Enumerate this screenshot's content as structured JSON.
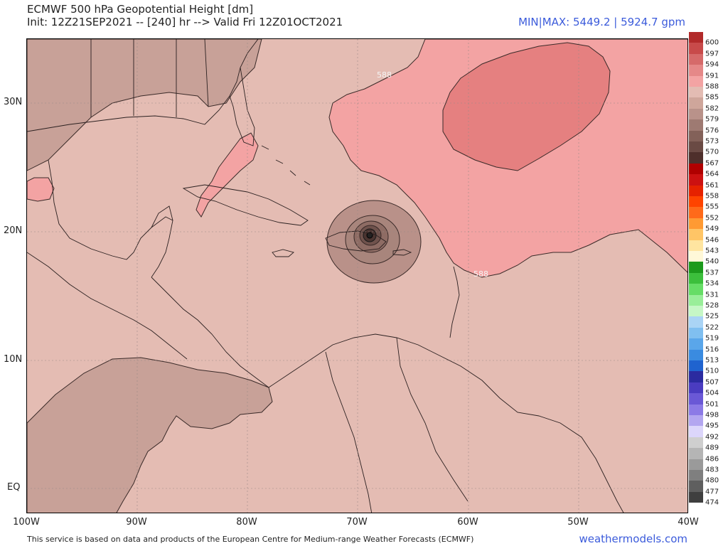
{
  "header": {
    "title": "ECMWF 500 hPa Geopotential Height [dm]",
    "init_line": "Init: 12Z21SEP2021 -- [240] hr --> Valid Fri 12Z01OCT2021",
    "minmax": "MIN|MAX: 5449.2 | 5924.7 gpm"
  },
  "axes": {
    "y_labels": [
      "30N",
      "20N",
      "10N",
      "EQ"
    ],
    "x_labels": [
      "100W",
      "90W",
      "80W",
      "70W",
      "60W",
      "50W",
      "40W"
    ]
  },
  "contour_labels": [
    "588",
    "588"
  ],
  "colorbar": {
    "labels": [
      "600",
      "597",
      "594",
      "591",
      "588",
      "585",
      "582",
      "579",
      "576",
      "573",
      "570",
      "567",
      "564",
      "561",
      "558",
      "555",
      "552",
      "549",
      "546",
      "543",
      "540",
      "537",
      "534",
      "531",
      "528",
      "525",
      "522",
      "519",
      "516",
      "513",
      "510",
      "507",
      "504",
      "501",
      "498",
      "495",
      "492",
      "489",
      "486",
      "483",
      "480",
      "477",
      "474"
    ],
    "colors": [
      "#b22a2a",
      "#c84a4a",
      "#d66a6a",
      "#e58888",
      "#f3a3a3",
      "#e3bcb3",
      "#cfa69b",
      "#b9928a",
      "#9e7a72",
      "#836159",
      "#6a4a44",
      "#4e2f2b",
      "#b00000",
      "#cc1111",
      "#e62200",
      "#ff4400",
      "#ff6a1a",
      "#ff9a33",
      "#ffc566",
      "#ffe5a0",
      "#fff8d8",
      "#1c9a1c",
      "#3cbf3c",
      "#66dd66",
      "#99ee99",
      "#c6f7c6",
      "#aad4f5",
      "#80bff0",
      "#5aa6ea",
      "#3a8be0",
      "#1f63cf",
      "#2b2ba0",
      "#4a3cc0",
      "#6a58d6",
      "#8c7ae6",
      "#b3a6f0",
      "#dcd6fb",
      "#cfcfcf",
      "#b5b5b5",
      "#9a9a9a",
      "#7f7f7f",
      "#5f5f5f",
      "#3f3f3f"
    ]
  },
  "footer": {
    "notice": "This service is based on data and products of the European Centre for Medium-range Weather Forecasts (ECMWF)",
    "brand": "weathermodels.com"
  },
  "colors": {
    "field_base": "#e4bcb3",
    "land_low": "#c8a198",
    "high_588": "#f3a3a3",
    "high_591": "#e58080",
    "low_ring": "#a8857c",
    "accent": "#3b5bdb"
  }
}
